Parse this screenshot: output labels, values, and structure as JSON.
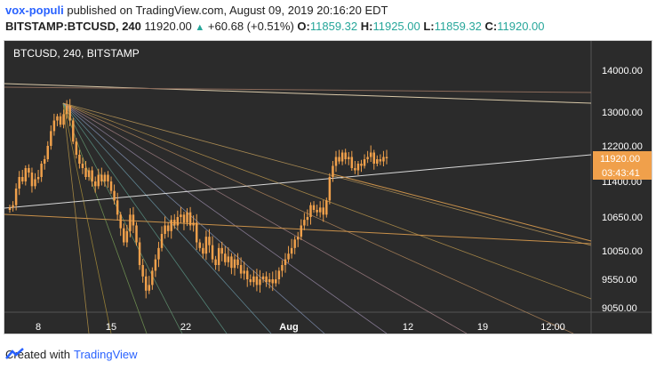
{
  "header": {
    "user": "vox-populi",
    "published_text": "published on TradingView.com, August 09, 2019 20:16:20 EDT",
    "symbol_line": "BITSTAMP:BTCUSD, 240",
    "last": "11920.00",
    "change": "+60.68 (+0.51%)",
    "o_label": "O:",
    "o_value": "11859.32",
    "h_label": "H:",
    "h_value": "11925.00",
    "l_label": "L:",
    "l_value": "11859.32",
    "c_label": "C:",
    "c_value": "11920.00"
  },
  "footer": {
    "created_with": "Created with",
    "brand": "TradingView"
  },
  "colors": {
    "background": "#2b2b2b",
    "candle": "#f0a04b",
    "price_tag": "#f0a04b",
    "axis_text": "#ffffff"
  },
  "chart_data": {
    "type": "candlestick",
    "title": "BTCUSD, 240, BITSTAMP",
    "y_ticks": [
      14000,
      13000,
      12200,
      11400,
      10650,
      10050,
      9550,
      9050
    ],
    "y_tick_labels": [
      "14000.00",
      "13000.00",
      "12200.00",
      "11400.00",
      "10650.00",
      "10050.00",
      "9550.00",
      "9050.00"
    ],
    "x_tick_labels": [
      "8",
      "15",
      "22",
      "Aug",
      "12",
      "19",
      "12:00"
    ],
    "last_price_label": "11920.00",
    "countdown_label": "03:43:41",
    "ylim": [
      9000,
      14500
    ],
    "grid": false,
    "closes": [
      10850,
      10900,
      11250,
      11500,
      11400,
      11700,
      11600,
      11300,
      11450,
      11500,
      11800,
      11900,
      12200,
      12550,
      12800,
      12900,
      12700,
      12950,
      13150,
      12800,
      12300,
      12000,
      11800,
      11700,
      11500,
      11650,
      11400,
      11300,
      11550,
      11400,
      11550,
      11400,
      11200,
      11000,
      10700,
      10450,
      10200,
      10400,
      10700,
      10500,
      10200,
      9800,
      9600,
      9350,
      9450,
      9700,
      9900,
      10100,
      10350,
      10500,
      10400,
      10600,
      10500,
      10650,
      10700,
      10550,
      10750,
      10500,
      10550,
      10200,
      10100,
      10000,
      10300,
      10150,
      9900,
      9800,
      10100,
      10000,
      9850,
      9950,
      9750,
      9900,
      9800,
      9650,
      9700,
      9550,
      9500,
      9600,
      9450,
      9550,
      9600,
      9500,
      9550,
      9480,
      9550,
      9700,
      9800,
      9900,
      10000,
      10100,
      10250,
      10300,
      10500,
      10600,
      10650,
      10900,
      10800,
      10750,
      10850,
      10700,
      11000,
      11500,
      11750,
      11950,
      11850,
      12050,
      11900,
      11950,
      11700,
      11650,
      11800,
      11750,
      11900,
      11950,
      12050,
      11800,
      11900,
      11850,
      11950,
      11920
    ]
  }
}
